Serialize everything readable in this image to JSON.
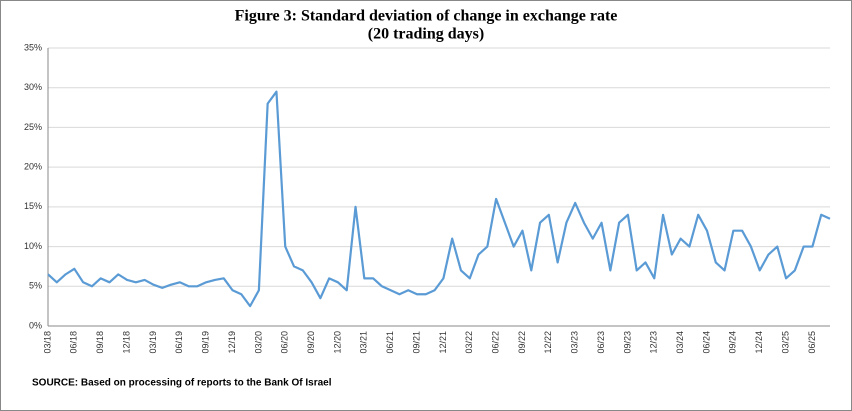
{
  "chart_data": {
    "type": "line",
    "title": "Figure 3:  Standard deviation of change in exchange rate",
    "subtitle": "(20 trading days)",
    "source": "SOURCE: Based on processing of reports to the Bank Of Israel",
    "categories": [
      "03/18",
      null,
      null,
      "06/18",
      null,
      null,
      "09/18",
      null,
      null,
      "12/18",
      null,
      null,
      "03/19",
      null,
      null,
      "06/19",
      null,
      null,
      "09/19",
      null,
      null,
      "12/19",
      null,
      null,
      "03/20",
      null,
      null,
      "06/20",
      null,
      null,
      "09/20",
      null,
      null,
      "12/20",
      null,
      null,
      "03/21",
      null,
      null,
      "06/21",
      null,
      null,
      "09/21",
      null,
      null,
      "12/21",
      null,
      null,
      "03/22",
      null,
      null,
      "06/22",
      null,
      null,
      "09/22",
      null,
      null,
      "12/22",
      null,
      null,
      "03/23",
      null,
      null,
      "06/23",
      null,
      null,
      "09/23",
      null,
      null,
      "12/23",
      null,
      null,
      "03/24",
      null,
      null,
      "06/24",
      null,
      null,
      "09/24",
      null,
      null,
      "12/24",
      null,
      null,
      "03/25",
      null,
      null,
      "06/25",
      null,
      null
    ],
    "series": [
      {
        "name": "Standard deviation",
        "color": "#5b9bd5",
        "values": [
          6.5,
          5.5,
          6.5,
          7.2,
          5.5,
          5,
          6,
          5.5,
          6.5,
          5.8,
          5.5,
          5.8,
          5.2,
          4.8,
          5.2,
          5.5,
          5,
          5,
          5.5,
          5.8,
          6,
          4.5,
          4,
          2.5,
          4.5,
          28,
          29.5,
          10,
          7.5,
          7,
          5.5,
          3.5,
          6,
          5.5,
          4.5,
          15,
          6,
          6,
          5,
          4.5,
          4,
          4.5,
          4,
          4,
          4.5,
          6,
          11,
          7,
          6,
          9,
          10,
          16,
          13,
          10,
          12,
          7,
          13,
          14,
          8,
          13,
          15.5,
          13,
          11,
          13,
          7,
          13,
          14,
          7,
          8,
          6,
          14,
          9,
          11,
          10,
          14,
          12,
          8,
          7,
          12,
          12,
          10,
          7,
          9,
          10,
          6,
          7,
          10,
          10,
          14,
          13.5
        ]
      }
    ],
    "ylim": [
      0,
      35
    ],
    "yticks": [
      {
        "value": 0,
        "label": "0%"
      },
      {
        "value": 5,
        "label": "5%"
      },
      {
        "value": 10,
        "label": "10%"
      },
      {
        "value": 15,
        "label": "15%"
      },
      {
        "value": 20,
        "label": "20%"
      },
      {
        "value": 25,
        "label": "25%"
      },
      {
        "value": 30,
        "label": "30%"
      },
      {
        "value": 35,
        "label": "35%"
      }
    ],
    "grid": true
  }
}
